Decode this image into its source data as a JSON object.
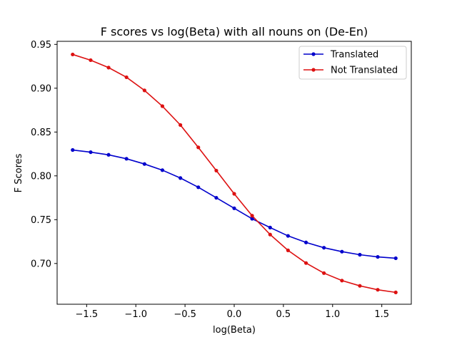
{
  "chart_data": {
    "type": "line",
    "title": "F scores vs log(Beta) with all nouns on (De-En)",
    "xlabel": "log(Beta)",
    "ylabel": "F Scores",
    "xlim": [
      -1.8,
      1.8
    ],
    "ylim": [
      0.6535,
      0.9535
    ],
    "xticks": [
      -1.5,
      -1.0,
      -0.5,
      0.0,
      0.5,
      1.0,
      1.5
    ],
    "xtick_labels": [
      "−1.5",
      "−1.0",
      "−0.5",
      "0.0",
      "0.5",
      "1.0",
      "1.5"
    ],
    "yticks": [
      0.7,
      0.75,
      0.8,
      0.85,
      0.9,
      0.95
    ],
    "ytick_labels": [
      "0.70",
      "0.75",
      "0.80",
      "0.85",
      "0.90",
      "0.95"
    ],
    "grid": false,
    "legend_position": "top-right",
    "x": [
      -1.642,
      -1.459,
      -1.277,
      -1.095,
      -0.912,
      -0.73,
      -0.547,
      -0.365,
      -0.182,
      0.0,
      0.182,
      0.365,
      0.547,
      0.73,
      0.912,
      1.095,
      1.277,
      1.459,
      1.642
    ],
    "series": [
      {
        "name": "Translated",
        "color": "#0000cc",
        "values": [
          0.8295,
          0.827,
          0.824,
          0.8195,
          0.8135,
          0.8065,
          0.7975,
          0.787,
          0.775,
          0.763,
          0.751,
          0.741,
          0.7315,
          0.724,
          0.718,
          0.7135,
          0.71,
          0.7075,
          0.706
        ]
      },
      {
        "name": "Not Translated",
        "color": "#dd1111",
        "values": [
          0.9385,
          0.932,
          0.9235,
          0.9125,
          0.8975,
          0.8795,
          0.858,
          0.8325,
          0.806,
          0.7795,
          0.7545,
          0.733,
          0.715,
          0.7005,
          0.689,
          0.6805,
          0.6745,
          0.67,
          0.667
        ]
      }
    ]
  }
}
